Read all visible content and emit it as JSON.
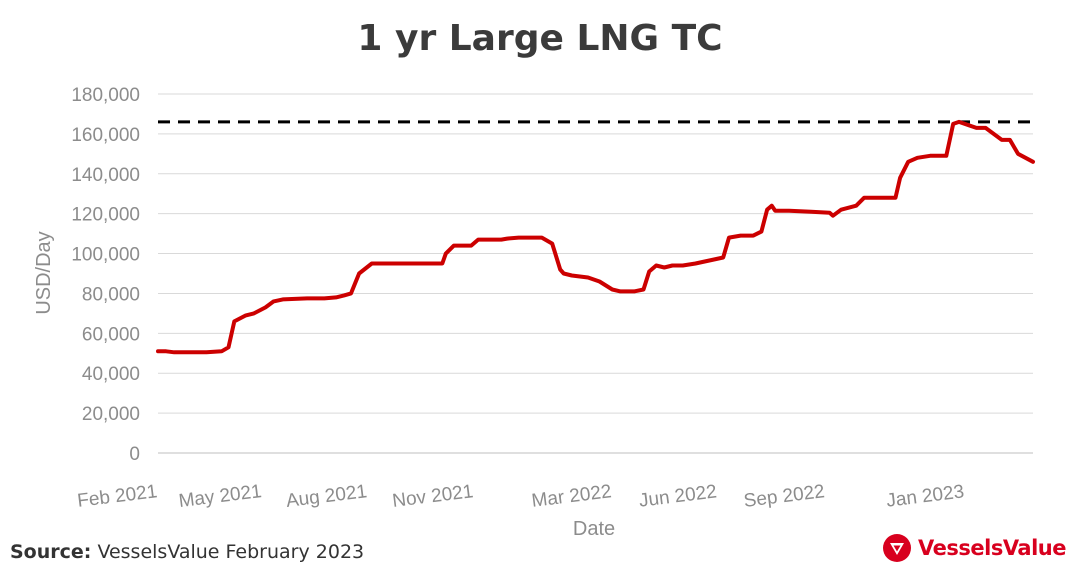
{
  "chart_data": {
    "type": "line",
    "title": "1 yr Large LNG TC",
    "xlabel": "Date",
    "ylabel": "USD/Day",
    "ylim": [
      0,
      180000
    ],
    "yticks": [
      "0",
      "20,000",
      "40,000",
      "60,000",
      "80,000",
      "100,000",
      "120,000",
      "140,000",
      "160,000",
      "180,000"
    ],
    "xticks": [
      "Feb 2021",
      "May 2021",
      "Aug 2021",
      "Nov 2021",
      "Mar 2022",
      "Jun 2022",
      "Sep 2022",
      "Jan 2023"
    ],
    "xlim": [
      "2021-02-01",
      "2023-02-28"
    ],
    "grid": true,
    "line_color": "#cc0000",
    "reference_line": {
      "value": 166000,
      "style": "dashed",
      "color": "#000000"
    },
    "series": [
      {
        "x": [
          "2021-02-01",
          "2021-02-08",
          "2021-02-15",
          "2021-02-28",
          "2021-03-15",
          "2021-03-28",
          "2021-04-03",
          "2021-04-08",
          "2021-04-18",
          "2021-04-25",
          "2021-05-05",
          "2021-05-12",
          "2021-05-20",
          "2021-06-10",
          "2021-06-25",
          "2021-07-05",
          "2021-07-12",
          "2021-07-18",
          "2021-07-25",
          "2021-08-05",
          "2021-08-20",
          "2021-09-10",
          "2021-10-05",
          "2021-10-08",
          "2021-10-15",
          "2021-10-25",
          "2021-10-30",
          "2021-11-05",
          "2021-11-25",
          "2021-11-30",
          "2021-12-10",
          "2021-12-25",
          "2021-12-30",
          "2022-01-08",
          "2022-01-15",
          "2022-01-18",
          "2022-01-25",
          "2022-02-08",
          "2022-02-18",
          "2022-03-01",
          "2022-03-08",
          "2022-03-20",
          "2022-03-28",
          "2022-04-02",
          "2022-04-08",
          "2022-04-15",
          "2022-04-22",
          "2022-05-01",
          "2022-05-12",
          "2022-05-20",
          "2022-05-28",
          "2022-06-05",
          "2022-06-10",
          "2022-06-20",
          "2022-07-01",
          "2022-07-08",
          "2022-07-13",
          "2022-07-17",
          "2022-07-20",
          "2022-08-01",
          "2022-08-20",
          "2022-09-05",
          "2022-09-08",
          "2022-09-15",
          "2022-09-28",
          "2022-10-05",
          "2022-10-10",
          "2022-10-20",
          "2022-11-01",
          "2022-11-05",
          "2022-11-12",
          "2022-11-20",
          "2022-12-01",
          "2022-12-15",
          "2022-12-21",
          "2022-12-26",
          "2023-01-10",
          "2023-01-18",
          "2023-02-01",
          "2023-02-08",
          "2023-02-15",
          "2023-02-28"
        ],
        "y": [
          51000,
          51000,
          50500,
          50500,
          50500,
          51000,
          53000,
          66000,
          69000,
          70000,
          73000,
          76000,
          77000,
          77500,
          77500,
          78000,
          79000,
          80000,
          90000,
          95000,
          95000,
          95000,
          95000,
          100000,
          104000,
          104000,
          104000,
          107000,
          107000,
          107500,
          108000,
          108000,
          108000,
          105000,
          92000,
          90000,
          89000,
          88000,
          86000,
          82000,
          81000,
          81000,
          82000,
          91000,
          94000,
          93000,
          94000,
          94000,
          95000,
          96000,
          97000,
          98000,
          108000,
          109000,
          109000,
          111000,
          122000,
          124000,
          121500,
          121500,
          121000,
          120500,
          119000,
          122000,
          124000,
          128000,
          128000,
          128000,
          128000,
          138000,
          146000,
          148000,
          149000,
          149000,
          165000,
          166000,
          163000,
          163000,
          157000,
          157000,
          150000,
          146000
        ]
      }
    ]
  },
  "source": {
    "label": "Source:",
    "text": "VesselsValue February 2023"
  },
  "brand": {
    "name": "VesselsValue",
    "logo_icon": "vesselsvalue-logo-icon",
    "color": "#d8001e"
  }
}
